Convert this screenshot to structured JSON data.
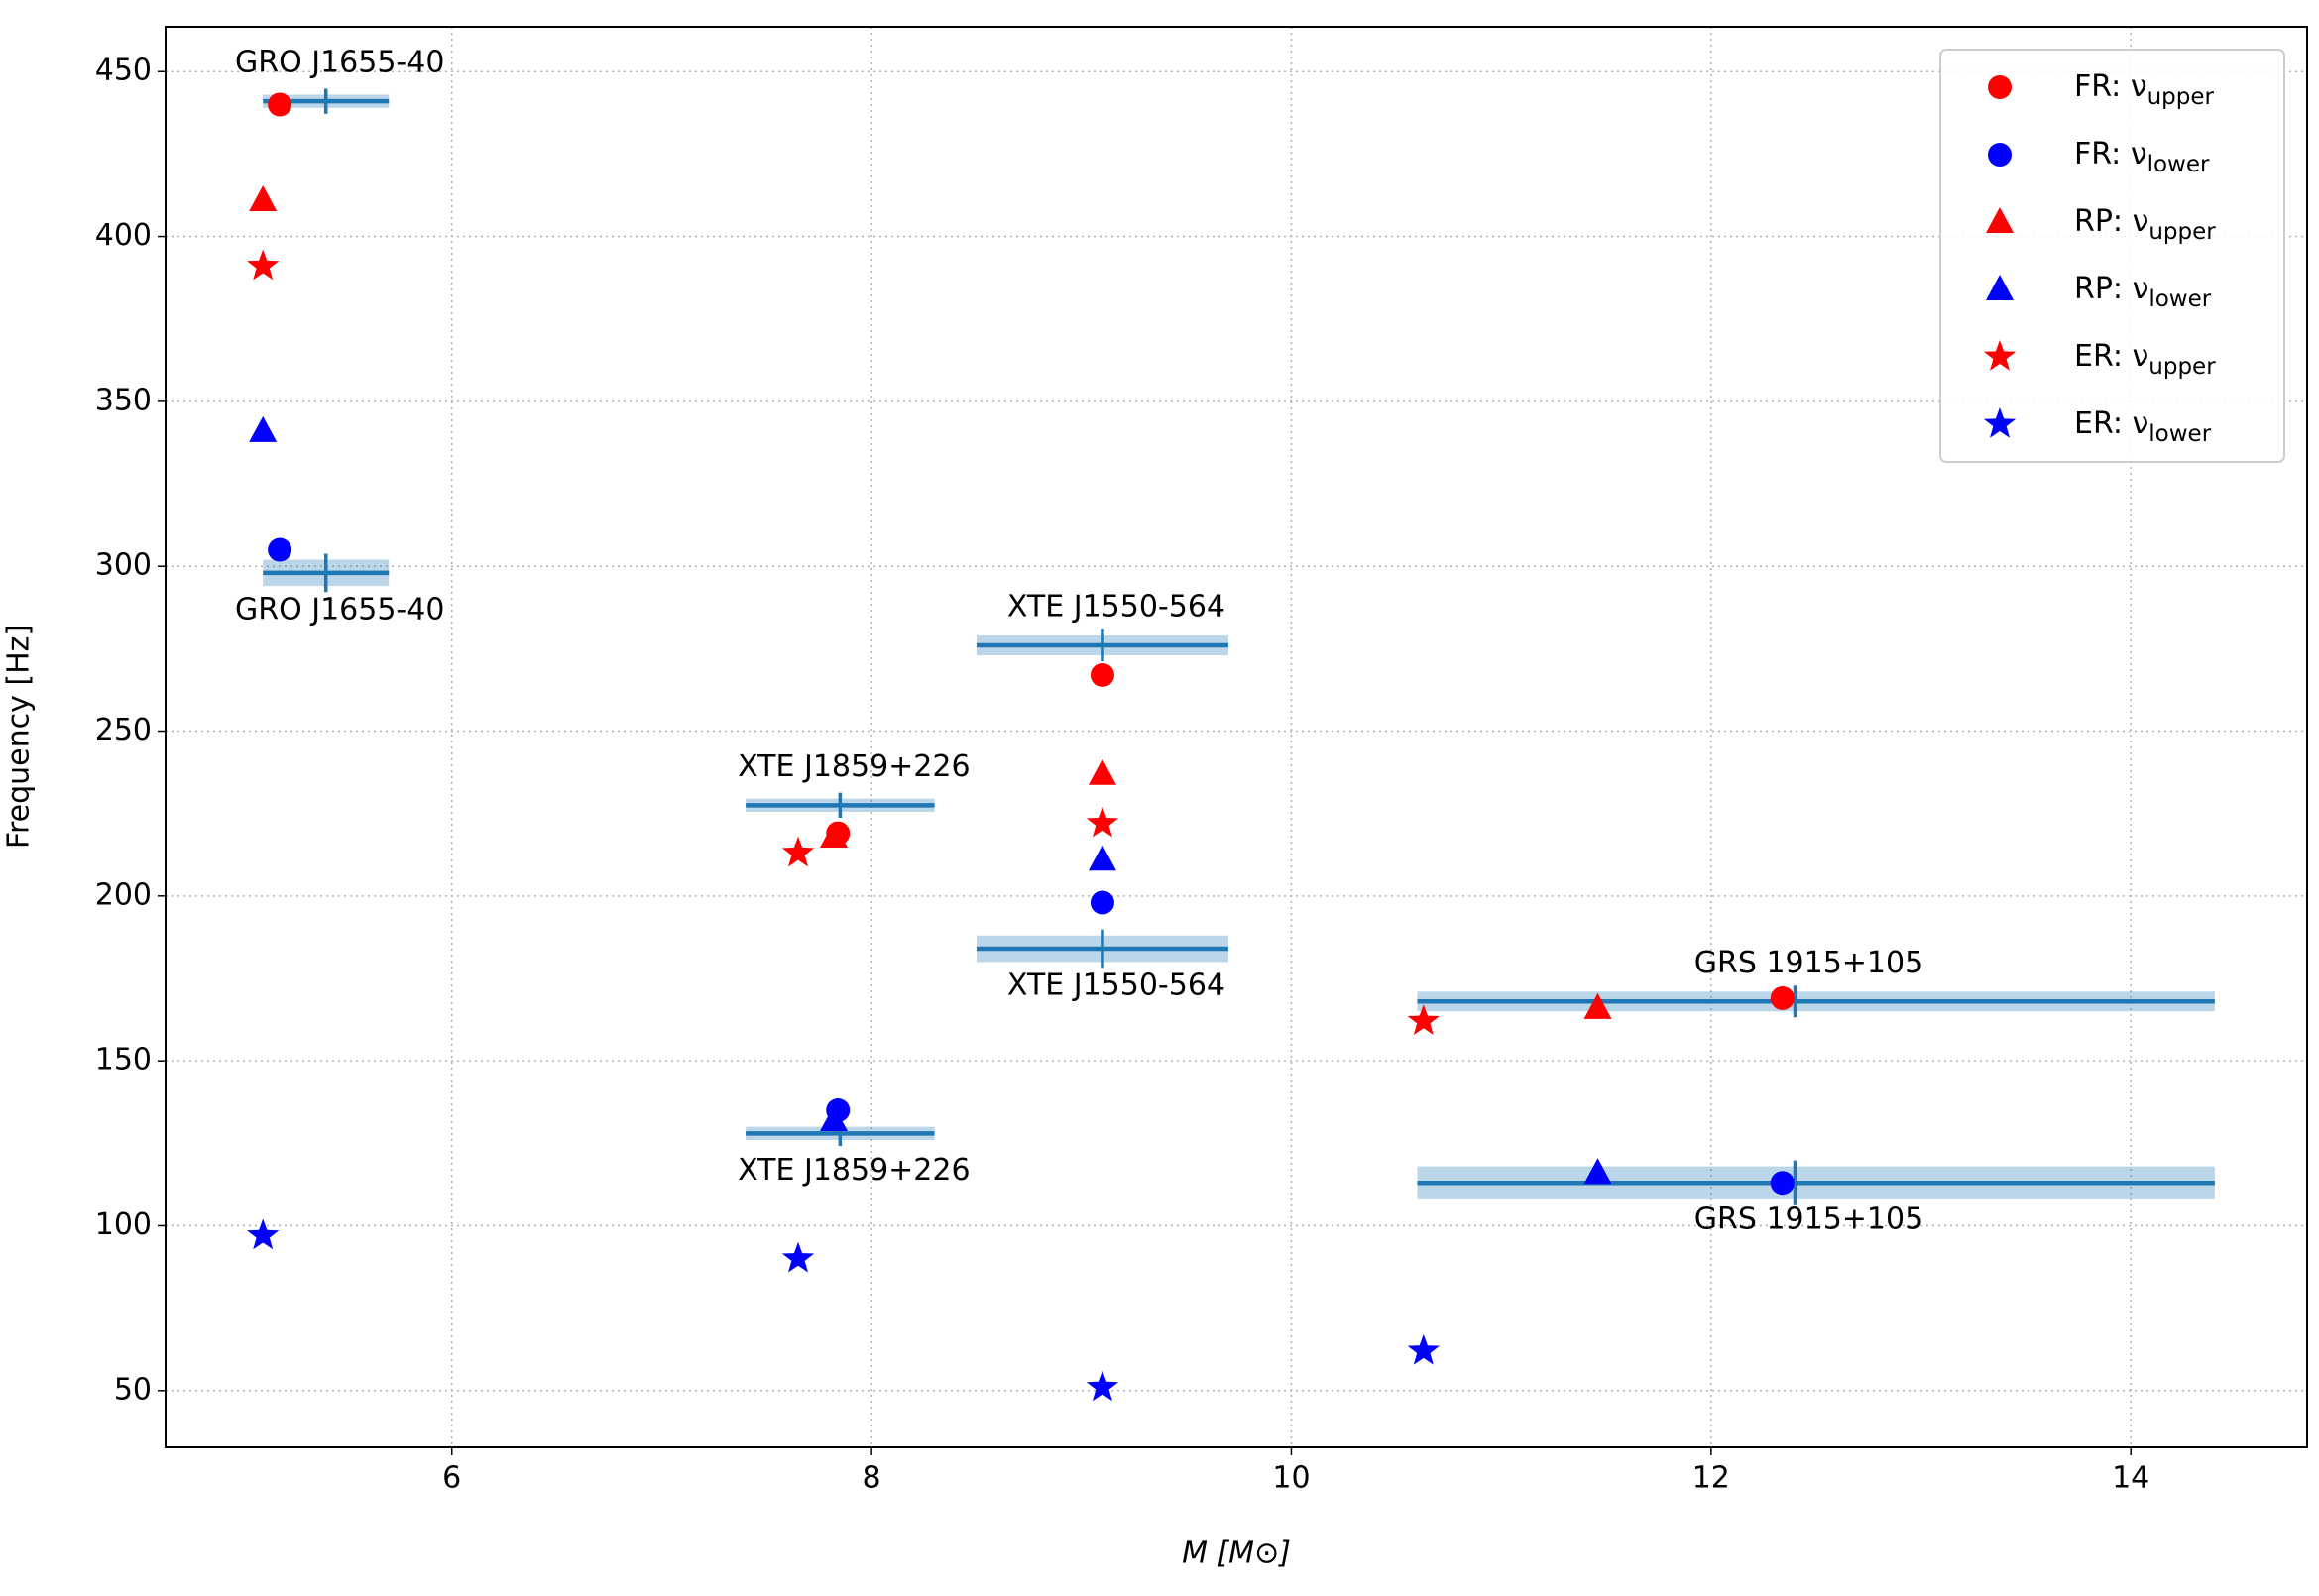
{
  "chart_data": {
    "type": "scatter",
    "x_label": "M [M⊙]",
    "y_label": "Frequency [Hz]",
    "xlim": [
      4.636,
      14.84
    ],
    "ylim": [
      32.8,
      463.6
    ],
    "xticks": [
      6,
      8,
      10,
      12,
      14
    ],
    "yticks": [
      50,
      100,
      150,
      200,
      250,
      300,
      350,
      400,
      450
    ],
    "grid": true,
    "legend": "upper right",
    "series": [
      {
        "name": "FR: ν",
        "name_sub": "upper",
        "color": "#ff0000",
        "marker": "circle",
        "x": [
          5.18,
          7.84,
          9.1,
          12.34
        ],
        "values": [
          440,
          219,
          267,
          169
        ]
      },
      {
        "name": "FR: ν",
        "name_sub": "lower",
        "color": "#0000ff",
        "marker": "circle",
        "x": [
          5.18,
          7.84,
          9.1,
          12.34
        ],
        "values": [
          305,
          135,
          198,
          113
        ]
      },
      {
        "name": "RP: ν",
        "name_sub": "upper",
        "color": "#ff0000",
        "marker": "triangle",
        "x": [
          5.1,
          7.82,
          9.1,
          11.46
        ],
        "values": [
          411,
          218,
          237,
          166
        ]
      },
      {
        "name": "RP: ν",
        "name_sub": "lower",
        "color": "#0000ff",
        "marker": "triangle",
        "x": [
          5.1,
          7.82,
          9.1,
          11.46
        ],
        "values": [
          341,
          132,
          211,
          116
        ]
      },
      {
        "name": "ER: ν",
        "name_sub": "upper",
        "color": "#ff0000",
        "marker": "star",
        "x": [
          5.1,
          7.65,
          9.1,
          10.63
        ],
        "values": [
          391,
          213,
          222,
          162
        ]
      },
      {
        "name": "ER: ν",
        "name_sub": "lower",
        "color": "#0000ff",
        "marker": "star",
        "x": [
          5.1,
          7.65,
          9.1,
          10.63
        ],
        "values": [
          97,
          90,
          51,
          62
        ]
      }
    ],
    "observations": [
      {
        "name": "GRO J1655-40",
        "mass": 5.4,
        "mass_range": [
          5.1,
          5.7
        ],
        "frequencies": [
          441,
          298
        ],
        "frequency_errors": [
          2,
          4
        ]
      },
      {
        "name": "XTE J1859+226",
        "mass": 7.85,
        "mass_range": [
          7.4,
          8.3
        ],
        "frequencies": [
          227.5,
          128
        ],
        "frequency_errors": [
          2,
          2
        ]
      },
      {
        "name": "XTE J1550-564",
        "mass": 9.1,
        "mass_range": [
          8.5,
          9.7
        ],
        "frequencies": [
          276,
          184
        ],
        "frequency_errors": [
          3,
          4
        ]
      },
      {
        "name": "GRS 1915+105",
        "mass": 12.4,
        "mass_range": [
          10.6,
          14.4
        ],
        "frequencies": [
          168,
          113
        ],
        "frequency_errors": [
          3,
          5
        ]
      }
    ],
    "observation_color": "#1f77b4"
  }
}
